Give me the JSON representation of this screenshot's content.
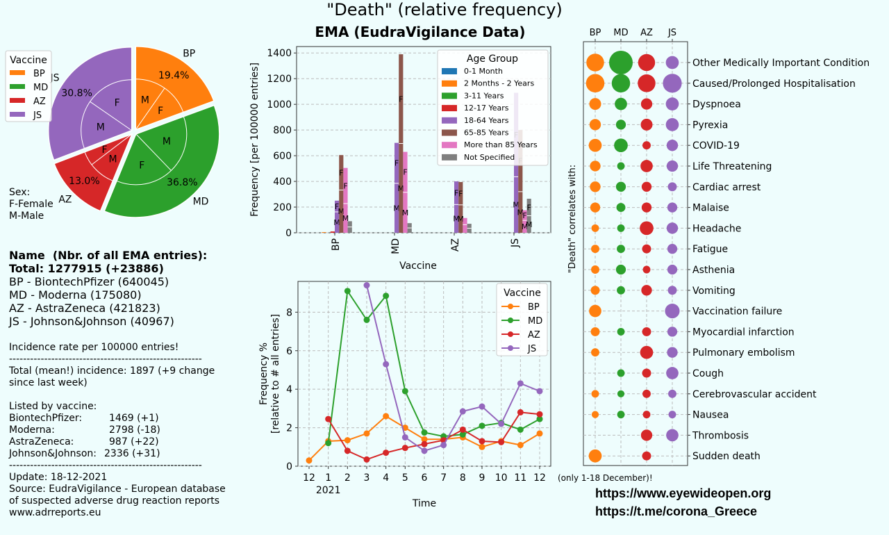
{
  "page": {
    "main_title": "\"Death\" (relative frequency)",
    "subtitle": "EMA (EudraVigilance Data)",
    "colors": {
      "BP": "#ff7f0e",
      "MD": "#2ca02c",
      "AZ": "#d62728",
      "JS": "#9467bd"
    }
  },
  "info": {
    "name_header": "Name  (Nbr. of all EMA entries):",
    "total": "Total: 1277915 (+23886)",
    "vaccines": [
      "BP - BiontechPfizer (640045)",
      "MD - Moderna (175080)",
      "AZ - AstraZeneca (421823)",
      "JS - Johnson&Johnson (40967)"
    ],
    "incidence_note": "Incidence rate per 100000 entries!",
    "divider": "-------------------------------------------------------",
    "total_incidence_1": "Total (mean!) incidence: 1897 (+9 change",
    "total_incidence_2": "since last week)",
    "listed_by": "Listed by vaccine:",
    "by_vaccine": [
      {
        "name": "BiontechPfizer:",
        "value": "1469 (+1)"
      },
      {
        "name": "Moderna:",
        "value": "2798 (-18)"
      },
      {
        "name": "AstraZeneca:",
        "value": "987 (+22)"
      },
      {
        "name": "Johnson&Johnson:",
        "value": "2336 (+31)"
      }
    ],
    "update": "Update: 18-12-2021",
    "source_1": "Source: EudraVigilance - European database",
    "source_2": "of suspected adverse drug reaction reports",
    "source_3": "www.adrreports.eu"
  },
  "links": {
    "site": "https://www.eyewideopen.org",
    "telegram": "https://t.me/corona_Greece"
  },
  "chart_data": [
    {
      "type": "pie",
      "legend_title": "Vaccine",
      "legend_placement": "upper-left",
      "slices": [
        {
          "label": "BP",
          "value": 19.4,
          "pct_label": "19.4%",
          "color": "#ff7f0e"
        },
        {
          "label": "MD",
          "value": 36.8,
          "pct_label": "36.8%",
          "color": "#2ca02c"
        },
        {
          "label": "AZ",
          "value": 13.0,
          "pct_label": "13.0%",
          "color": "#d62728"
        },
        {
          "label": "JS",
          "value": 30.8,
          "pct_label": "30.8%",
          "color": "#9467bd"
        }
      ],
      "inner_ring": [
        {
          "vaccine": "BP",
          "female": 0.5,
          "label_f": "F",
          "label_m": "M"
        },
        {
          "vaccine": "MD",
          "female": 0.5,
          "label_f": "F",
          "label_m": "M"
        },
        {
          "vaccine": "AZ",
          "female": 0.35,
          "label_f": "F",
          "label_m": "M"
        },
        {
          "vaccine": "JS",
          "female": 0.5,
          "label_f": "F",
          "label_m": "M"
        }
      ],
      "sex_note": [
        "Sex:",
        "F-Female",
        "M-Male"
      ]
    },
    {
      "type": "bar",
      "xlabel": "Vaccine",
      "ylabel": "Frequency [per 100000 entries]",
      "ylim": [
        0,
        1450
      ],
      "yticks": [
        0,
        200,
        400,
        600,
        800,
        1000,
        1200,
        1400
      ],
      "grid": true,
      "legend_title": "Age Group",
      "legend_placement": "top-right",
      "categories": [
        "BP",
        "MD",
        "AZ",
        "JS"
      ],
      "series": [
        {
          "name": "0-1 Month",
          "color": "#1f77b4",
          "values": [
            0,
            0,
            0,
            0
          ],
          "female": [
            0,
            0,
            0,
            0
          ]
        },
        {
          "name": "2 Months - 2 Years",
          "color": "#ff7f0e",
          "values": [
            5,
            0,
            0,
            0
          ],
          "female": [
            0.5,
            0,
            0,
            0
          ]
        },
        {
          "name": "3-11 Years",
          "color": "#2ca02c",
          "values": [
            0,
            0,
            0,
            0
          ],
          "female": [
            0,
            0,
            0,
            0
          ]
        },
        {
          "name": "12-17 Years",
          "color": "#d62728",
          "values": [
            10,
            0,
            0,
            0
          ],
          "female": [
            0.5,
            0,
            0,
            0
          ]
        },
        {
          "name": "18-64 Years",
          "color": "#9467bd",
          "values": [
            250,
            700,
            400,
            1090
          ],
          "female": [
            0.35,
            0.45,
            0.45,
            0.6
          ]
        },
        {
          "name": "65-85 Years",
          "color": "#8c564b",
          "values": [
            605,
            1390,
            395,
            800
          ],
          "female": [
            0.45,
            0.5,
            0.45,
            0.6
          ]
        },
        {
          "name": "More than 85 Years",
          "color": "#e377c2",
          "values": [
            505,
            630,
            115,
            175
          ],
          "female": [
            0.55,
            0.5,
            0.45,
            0.45
          ]
        },
        {
          "name": "Not Specified",
          "color": "#7f7f7f",
          "values": [
            90,
            75,
            70,
            265
          ],
          "female": [
            0.5,
            0.5,
            0.5,
            0.5
          ]
        }
      ]
    },
    {
      "type": "line",
      "xlabel": "Time",
      "year_label": "2021",
      "ylabel_1": "Frequency %",
      "ylabel_2": "[relative to # all entries]",
      "ylim": [
        0,
        9.6
      ],
      "yticks": [
        0,
        2,
        4,
        6,
        8
      ],
      "grid": true,
      "legend_title": "Vaccine",
      "legend_placement": "top-right",
      "x": [
        "12",
        "1",
        "2",
        "3",
        "4",
        "5",
        "6",
        "7",
        "8",
        "9",
        "10",
        "11",
        "12"
      ],
      "series": [
        {
          "name": "BP",
          "color": "#ff7f0e",
          "values": [
            0.3,
            1.3,
            1.35,
            1.7,
            2.6,
            2.0,
            1.4,
            1.4,
            1.5,
            1.0,
            1.3,
            1.1,
            1.7
          ]
        },
        {
          "name": "MD",
          "color": "#2ca02c",
          "values": [
            null,
            1.2,
            9.1,
            7.6,
            8.85,
            3.9,
            1.75,
            1.55,
            1.65,
            2.1,
            2.25,
            1.9,
            2.45
          ]
        },
        {
          "name": "AZ",
          "color": "#d62728",
          "values": [
            null,
            2.45,
            0.8,
            0.35,
            0.7,
            0.95,
            1.15,
            1.35,
            1.9,
            1.3,
            1.25,
            2.8,
            2.7
          ]
        },
        {
          "name": "JS",
          "color": "#9467bd",
          "values": [
            null,
            null,
            null,
            9.4,
            5.3,
            1.5,
            0.8,
            1.1,
            2.85,
            3.1,
            2.2,
            4.3,
            3.9
          ]
        }
      ],
      "footnote": "(only 1-18 December)!"
    },
    {
      "type": "scatter",
      "ylabel": "\"Death\" correlates with:",
      "columns": [
        "BP",
        "MD",
        "AZ",
        "JS"
      ],
      "rows": [
        {
          "label": "Other Medically Important Condition",
          "sizes": [
            0.75,
            1.0,
            0.72,
            0.55
          ]
        },
        {
          "label": "Caused/Prolonged Hospitalisation",
          "sizes": [
            0.78,
            0.78,
            0.75,
            0.8
          ]
        },
        {
          "label": "Dyspnoea",
          "sizes": [
            0.5,
            0.52,
            0.48,
            0.55
          ]
        },
        {
          "label": "Pyrexia",
          "sizes": [
            0.48,
            0.42,
            0.5,
            0.55
          ]
        },
        {
          "label": "COVID-19",
          "sizes": [
            0.55,
            0.58,
            0.35,
            0.48
          ]
        },
        {
          "label": "Life Threatening",
          "sizes": [
            0.45,
            0.32,
            0.52,
            0.48
          ]
        },
        {
          "label": "Cardiac arrest",
          "sizes": [
            0.45,
            0.42,
            0.42,
            0.38
          ]
        },
        {
          "label": "Malaise",
          "sizes": [
            0.42,
            0.38,
            0.42,
            0.42
          ]
        },
        {
          "label": "Headache",
          "sizes": [
            0.32,
            0.32,
            0.58,
            0.48
          ]
        },
        {
          "label": "Fatigue",
          "sizes": [
            0.35,
            0.35,
            0.38,
            0.42
          ]
        },
        {
          "label": "Asthenia",
          "sizes": [
            0.35,
            0.42,
            0.32,
            0.42
          ]
        },
        {
          "label": "Vomiting",
          "sizes": [
            0.38,
            0.35,
            0.45,
            0.38
          ]
        },
        {
          "label": "Vaccination failure",
          "sizes": [
            0.52,
            0,
            0,
            0.62
          ]
        },
        {
          "label": "Myocardial infarction",
          "sizes": [
            0.38,
            0.32,
            0.38,
            0.42
          ]
        },
        {
          "label": "Pulmonary embolism",
          "sizes": [
            0.35,
            0,
            0.55,
            0.45
          ]
        },
        {
          "label": "Cough",
          "sizes": [
            0,
            0.32,
            0.38,
            0.52
          ]
        },
        {
          "label": "Cerebrovascular accident",
          "sizes": [
            0.32,
            0.3,
            0.35,
            0.35
          ]
        },
        {
          "label": "Nausea",
          "sizes": [
            0.3,
            0.32,
            0.32,
            0.32
          ]
        },
        {
          "label": "Thrombosis",
          "sizes": [
            0,
            0,
            0.48,
            0.52
          ]
        },
        {
          "label": "Sudden death",
          "sizes": [
            0.55,
            0,
            0.38,
            0
          ]
        }
      ]
    }
  ]
}
